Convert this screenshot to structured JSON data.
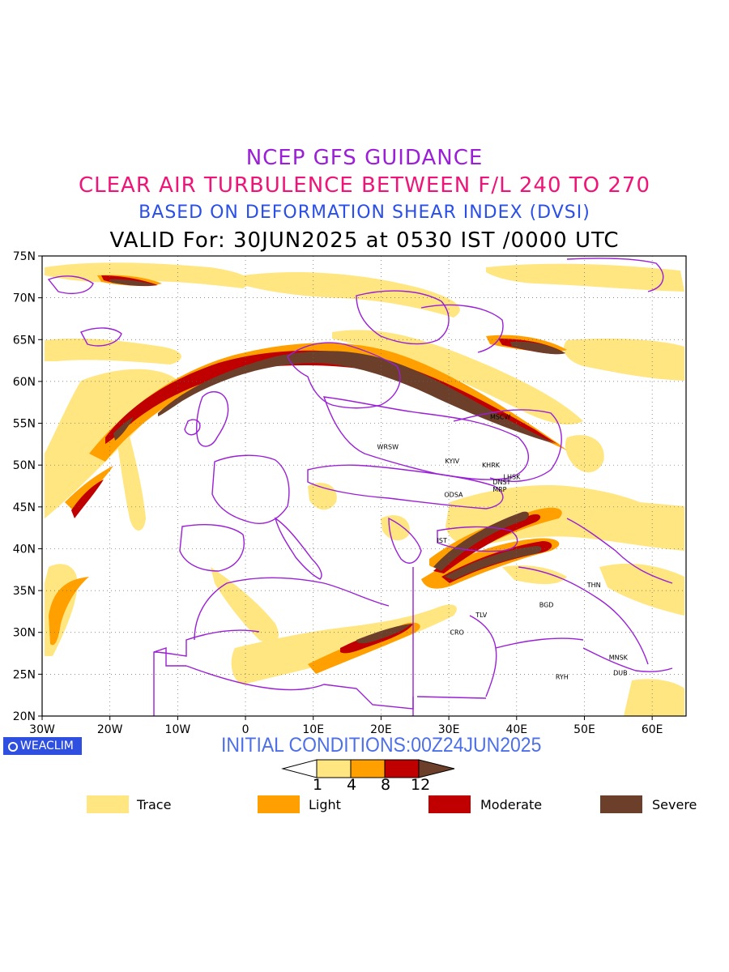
{
  "title": {
    "line1": "NCEP GFS GUIDANCE",
    "line2": "CLEAR AIR TURBULENCE BETWEEN F/L 240 TO 270",
    "line3": "BASED ON DEFORMATION SHEAR INDEX (DVSI)",
    "line4": "VALID For: 30JUN2025 at 0530 IST /0000 UTC"
  },
  "map": {
    "lon_range": [
      -30,
      65
    ],
    "lat_range": [
      20,
      75
    ],
    "lat_ticks": [
      "75N",
      "70N",
      "65N",
      "60N",
      "55N",
      "50N",
      "45N",
      "40N",
      "35N",
      "30N",
      "25N",
      "20N"
    ],
    "lon_ticks": [
      "30W",
      "20W",
      "10W",
      "0",
      "10E",
      "20E",
      "30E",
      "40E",
      "50E",
      "60E"
    ],
    "stations": [
      {
        "name": "MSCW",
        "lon": 37.6,
        "lat": 55.8
      },
      {
        "name": "WRSW",
        "lon": 21.0,
        "lat": 52.2
      },
      {
        "name": "KYIV",
        "lon": 30.5,
        "lat": 50.5
      },
      {
        "name": "KHRK",
        "lon": 36.2,
        "lat": 50.0
      },
      {
        "name": "LHSK",
        "lon": 39.3,
        "lat": 48.6
      },
      {
        "name": "DNST",
        "lon": 37.8,
        "lat": 48.0
      },
      {
        "name": "MRP",
        "lon": 37.5,
        "lat": 47.1
      },
      {
        "name": "ODSA",
        "lon": 30.7,
        "lat": 46.5
      },
      {
        "name": "IST",
        "lon": 29.0,
        "lat": 41.0
      },
      {
        "name": "THN",
        "lon": 51.4,
        "lat": 35.7
      },
      {
        "name": "BGD",
        "lon": 44.4,
        "lat": 33.3
      },
      {
        "name": "TLV",
        "lon": 34.8,
        "lat": 32.1
      },
      {
        "name": "CRO",
        "lon": 31.2,
        "lat": 30.0
      },
      {
        "name": "MNSK",
        "lon": 55.0,
        "lat": 27.0
      },
      {
        "name": "DUB",
        "lon": 55.3,
        "lat": 25.2
      },
      {
        "name": "RYH",
        "lon": 46.7,
        "lat": 24.7
      }
    ]
  },
  "branding": {
    "label": "WEACLIM"
  },
  "initial_conditions": "INITIAL  CONDITIONS:00Z24JUN2025",
  "colorbar": {
    "values": [
      "1",
      "4",
      "8",
      "12"
    ],
    "colors": [
      "#ffe680",
      "#ffa000",
      "#c00000",
      "#6b3f2a"
    ]
  },
  "legend": [
    {
      "label": "Trace",
      "color": "#ffe680"
    },
    {
      "label": "Light",
      "color": "#ffa000"
    },
    {
      "label": "Moderate",
      "color": "#c00000"
    },
    {
      "label": "Severe",
      "color": "#6b3f2a"
    }
  ],
  "colors": {
    "trace": "#ffe680",
    "light": "#ffa000",
    "moderate": "#c00000",
    "severe": "#6b3f2a",
    "boundaries": "#9a1fd6"
  }
}
